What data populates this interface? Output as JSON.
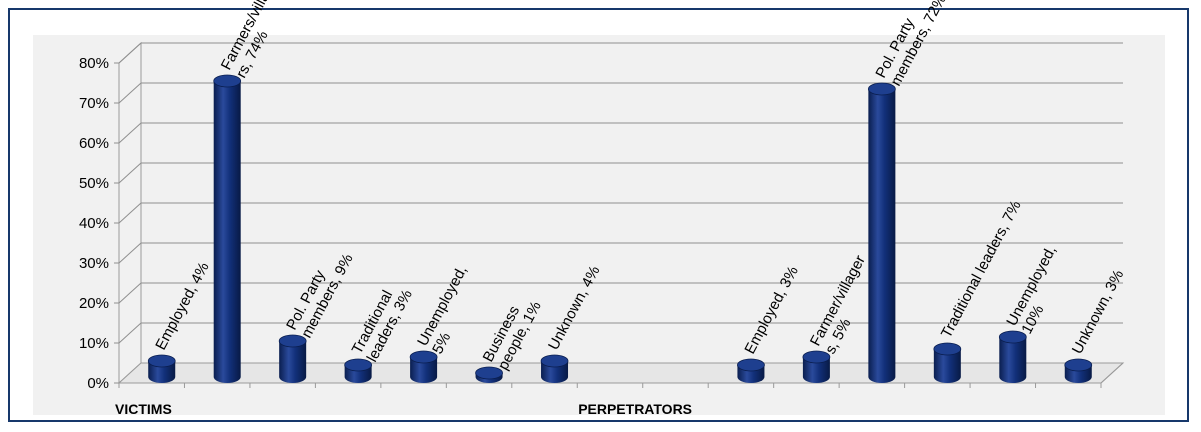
{
  "chart_data": {
    "type": "bar",
    "groups": [
      "VICTIMS",
      "PERPETRATORS"
    ],
    "y_ticks": [
      "0%",
      "10%",
      "20%",
      "30%",
      "40%",
      "50%",
      "60%",
      "70%",
      "80%"
    ],
    "ylim": [
      0,
      80
    ],
    "grid": true,
    "bar_color": "#0f2a6b",
    "points": [
      {
        "group": "VICTIMS",
        "label_lines": [
          "Employed, 4%"
        ],
        "value": 4
      },
      {
        "group": "VICTIMS",
        "label_lines": [
          "Farmers/village",
          "rs, 74%"
        ],
        "value": 74
      },
      {
        "group": "VICTIMS",
        "label_lines": [
          "Pol. Party",
          "members, 9%"
        ],
        "value": 9
      },
      {
        "group": "VICTIMS",
        "label_lines": [
          "Traditional",
          "leaders, 3%"
        ],
        "value": 3
      },
      {
        "group": "VICTIMS",
        "label_lines": [
          "Unemployed,",
          "5%"
        ],
        "value": 5
      },
      {
        "group": "VICTIMS",
        "label_lines": [
          "Business",
          "people, 1%"
        ],
        "value": 1
      },
      {
        "group": "VICTIMS",
        "label_lines": [
          "Unknown, 4%"
        ],
        "value": 4
      },
      {
        "group": "",
        "label_lines": [],
        "value": null
      },
      {
        "group": "",
        "label_lines": [],
        "value": null
      },
      {
        "group": "PERPETRATORS",
        "label_lines": [
          "Employed, 3%"
        ],
        "value": 3
      },
      {
        "group": "PERPETRATORS",
        "label_lines": [
          "Farmer/villager",
          "s, 5%"
        ],
        "value": 5
      },
      {
        "group": "PERPETRATORS",
        "label_lines": [
          "Pol. Party",
          "members, 72%"
        ],
        "value": 72
      },
      {
        "group": "PERPETRATORS",
        "label_lines": [
          "Traditional leaders, 7%"
        ],
        "value": 7
      },
      {
        "group": "PERPETRATORS",
        "label_lines": [
          "Unemployed,",
          "10%"
        ],
        "value": 10
      },
      {
        "group": "PERPETRATORS",
        "label_lines": [
          "Unknown, 3%"
        ],
        "value": 3
      }
    ]
  }
}
